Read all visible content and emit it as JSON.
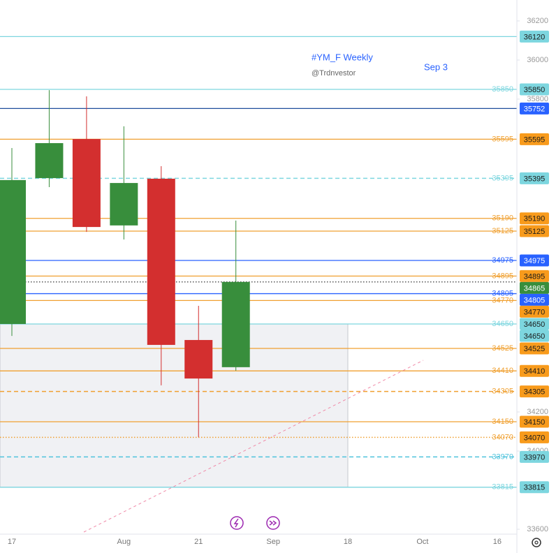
{
  "chart_data": {
    "type": "candlestick",
    "title": "#YM_F Weekly",
    "subtitle": "@Trdnvestor",
    "annotation": "Sep 3",
    "categories": [
      "17",
      null,
      null,
      "Aug",
      null,
      "21",
      null,
      "Sep",
      null,
      "18",
      null,
      "Oct",
      null,
      "16"
    ],
    "series": [
      {
        "up_color": "#388e3c",
        "down_color": "#d32f2f",
        "open": [
          34650,
          35396,
          35596,
          35154,
          35393,
          34568,
          34429,
          null,
          null,
          null,
          null,
          null,
          null,
          null
        ],
        "high": [
          35550,
          35846,
          35814,
          35661,
          35457,
          34743,
          35179,
          null,
          null,
          null,
          null,
          null,
          null,
          null
        ],
        "low": [
          34589,
          35350,
          35121,
          35082,
          34336,
          34071,
          34411,
          null,
          null,
          null,
          null,
          null,
          null,
          null
        ],
        "close": [
          35386,
          35575,
          35146,
          35371,
          34543,
          34371,
          34865,
          null,
          null,
          null,
          null,
          null,
          null,
          null
        ]
      }
    ],
    "ylim": [
      33575,
      36307
    ],
    "yticks": [
      33600,
      34000,
      34200,
      35800,
      36000,
      36200
    ],
    "levels": [
      {
        "value": 36120,
        "color": "#7dd6df",
        "style": "solid",
        "left_label": false,
        "tag_color": "#7dd6df"
      },
      {
        "value": 35850,
        "color": "#7dd6df",
        "style": "solid",
        "left_label": true,
        "tag_color": "#7dd6df"
      },
      {
        "value": 35752,
        "color": "#1f4e9c",
        "style": "solid",
        "left_label": false,
        "tag_color": "#2962ff"
      },
      {
        "value": 35595,
        "color": "#f0a030",
        "style": "solid",
        "left_label": true,
        "tag_color": "#f89b1c"
      },
      {
        "value": 35395,
        "color": "#7dd6df",
        "style": "dashed",
        "left_label": true,
        "tag_color": "#7dd6df"
      },
      {
        "value": 35190,
        "color": "#f0a030",
        "style": "solid",
        "left_label": true,
        "tag_color": "#f89b1c"
      },
      {
        "value": 35125,
        "color": "#f0a030",
        "style": "solid",
        "left_label": true,
        "tag_color": "#f89b1c"
      },
      {
        "value": 34975,
        "color": "#2962ff",
        "style": "solid",
        "left_label": true,
        "tag_color": "#2962ff"
      },
      {
        "value": 34895,
        "color": "#f0a030",
        "style": "solid",
        "left_label": true,
        "tag_color": "#f89b1c"
      },
      {
        "value": 34865,
        "color": "#555555",
        "style": "dotted",
        "left_label": false,
        "tag_color": "#388e3c"
      },
      {
        "value": 34805,
        "color": "#2962ff",
        "style": "solid",
        "left_label": true,
        "tag_color": "#2962ff"
      },
      {
        "value": 34770,
        "color": "#f0a030",
        "style": "solid",
        "left_label": true,
        "tag_color": "#f89b1c"
      },
      {
        "value": 34650,
        "color": "#7dd6df",
        "style": "solid",
        "left_label": true,
        "tag_color": "#7dd6df"
      },
      {
        "value": 34525,
        "color": "#f0a030",
        "style": "solid",
        "left_label": true,
        "tag_color": "#f89b1c"
      },
      {
        "value": 34410,
        "color": "#f0a030",
        "style": "solid",
        "left_label": true,
        "tag_color": "#f89b1c"
      },
      {
        "value": 34305,
        "color": "#f0a030",
        "style": "dashed",
        "left_label": true,
        "tag_color": "#f89b1c"
      },
      {
        "value": 34150,
        "color": "#f0a030",
        "style": "solid",
        "left_label": true,
        "tag_color": "#f89b1c"
      },
      {
        "value": 34070,
        "color": "#f0a030",
        "style": "dotted",
        "left_label": true,
        "tag_color": "#f89b1c"
      },
      {
        "value": 33970,
        "color": "#4fc3dc",
        "style": "dashed",
        "left_label": true,
        "tag_color": "#7dd6df"
      },
      {
        "value": 33815,
        "color": "#7dd6df",
        "style": "solid",
        "left_label": true,
        "tag_color": "#7dd6df"
      }
    ],
    "box": {
      "top": 34650,
      "bottom": 33815,
      "color": "#eceef1"
    }
  }
}
